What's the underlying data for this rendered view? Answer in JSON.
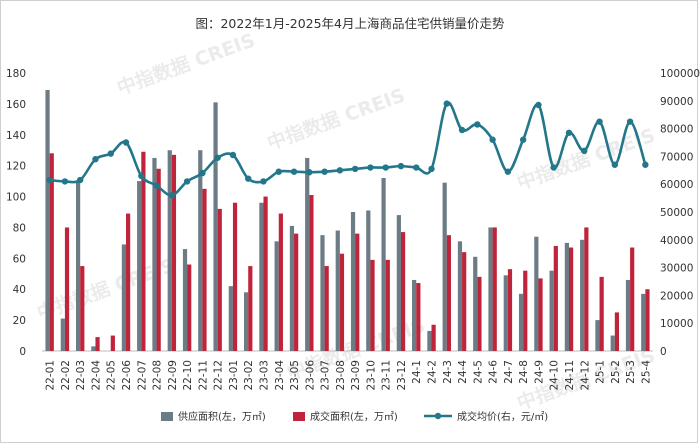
{
  "watermark": "中指数据 CREIS",
  "chart_data": {
    "type": "bar",
    "title": "图：2022年1月-2025年4月上海商品住宅供销量价走势",
    "categories": [
      "22-01",
      "22-02",
      "22-03",
      "22-04",
      "22-05",
      "22-06",
      "22-07",
      "22-08",
      "22-09",
      "22-10",
      "22-11",
      "22-12",
      "23-01",
      "23-02",
      "23-03",
      "23-04",
      "23-05",
      "23-06",
      "23-07",
      "23-08",
      "23-09",
      "23-10",
      "23-11",
      "23-12",
      "24-1",
      "24-2",
      "24-3",
      "24-4",
      "24-5",
      "24-6",
      "24-7",
      "24-8",
      "24-9",
      "24-10",
      "24-11",
      "24-12",
      "25-1",
      "25-2",
      "25-3",
      "25-4"
    ],
    "left_axis": {
      "min": 0,
      "max": 180,
      "step": 20
    },
    "right_axis": {
      "min": 0,
      "max": 100000,
      "step": 10000
    },
    "series": [
      {
        "name": "供应面积(左，万㎡)",
        "type": "bar",
        "axis": "left",
        "color": "#6b7c85",
        "values": [
          169,
          21,
          110,
          3,
          0,
          69,
          110,
          125,
          130,
          66,
          130,
          161,
          42,
          38,
          96,
          71,
          81,
          125,
          75,
          78,
          90,
          91,
          112,
          88,
          46,
          13,
          109,
          71,
          61,
          80,
          49,
          37,
          74,
          52,
          70,
          72,
          20,
          10,
          46,
          37
        ]
      },
      {
        "name": "成交面积(左，万㎡)",
        "type": "bar",
        "axis": "left",
        "color": "#c0243a",
        "values": [
          128,
          80,
          55,
          9,
          10,
          89,
          129,
          118,
          127,
          56,
          105,
          92,
          96,
          55,
          100,
          89,
          76,
          101,
          55,
          63,
          76,
          59,
          59,
          77,
          44,
          17,
          75,
          64,
          48,
          80,
          53,
          52,
          47,
          68,
          67,
          80,
          48,
          25,
          67,
          40
        ]
      },
      {
        "name": "成交均价(右，元/㎡)",
        "type": "line",
        "axis": "right",
        "color": "#22788a",
        "values": [
          61500,
          61000,
          61500,
          69000,
          71000,
          75000,
          63000,
          59500,
          56000,
          61000,
          64000,
          69500,
          70500,
          62000,
          61000,
          64500,
          64500,
          64300,
          64500,
          65000,
          65500,
          66000,
          66000,
          66500,
          66000,
          65500,
          89000,
          79500,
          81500,
          76000,
          64500,
          76000,
          88500,
          66000,
          78500,
          72000,
          82500,
          67000,
          82500,
          67000
        ]
      }
    ]
  }
}
